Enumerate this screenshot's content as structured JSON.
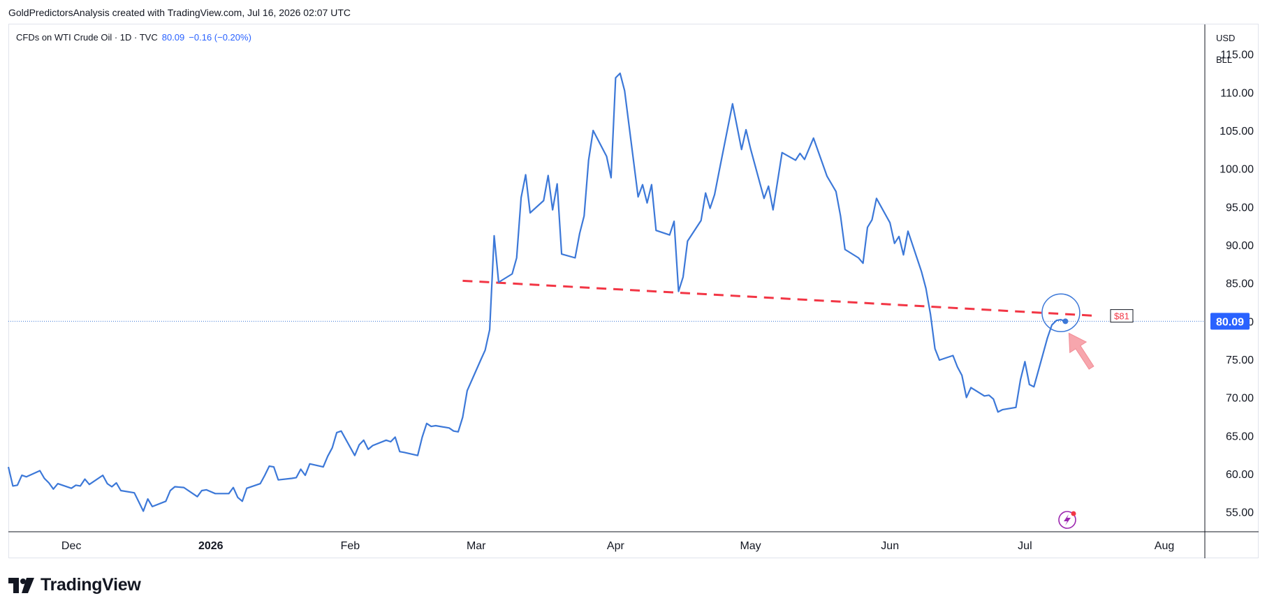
{
  "header": {
    "caption": "GoldPredictorsAnalysis created with TradingView.com, Jul 16, 2026 02:07 UTC"
  },
  "legend": {
    "symbol": "CFDs on WTI Crude Oil · 1D · TVC",
    "last": "80.09",
    "change": "−0.16 (−0.20%)"
  },
  "units": {
    "currency": "USD",
    "unit": "BLL"
  },
  "colors": {
    "line": "#3c78d8",
    "trendline": "#f23645",
    "price_badge": "#2962ff",
    "arrow": "#f7a6ad",
    "axis_text": "#131722"
  },
  "footer": {
    "brand": "TradingView"
  },
  "chart_data": {
    "type": "line",
    "title": "",
    "xlabel": "",
    "ylabel": "",
    "ylim": [
      52.5,
      119
    ],
    "yticks": [
      55,
      60,
      65,
      70,
      75,
      80,
      85,
      90,
      95,
      100,
      105,
      110,
      115
    ],
    "ytick_labels": [
      "55.00",
      "60.00",
      "65.00",
      "70.00",
      "75.00",
      "80.00",
      "85.00",
      "90.00",
      "95.00",
      "100.00",
      "105.00",
      "110.00",
      "115.00"
    ],
    "xlim": [
      "2025-11-17",
      "2026-08-10"
    ],
    "xticks": [
      {
        "label": "Dec",
        "date": "2025-12-01",
        "bold": false
      },
      {
        "label": "2026",
        "date": "2026-01-01",
        "bold": true
      },
      {
        "label": "Feb",
        "date": "2026-02-01",
        "bold": false
      },
      {
        "label": "Mar",
        "date": "2026-03-01",
        "bold": false
      },
      {
        "label": "Apr",
        "date": "2026-04-01",
        "bold": false
      },
      {
        "label": "May",
        "date": "2026-05-01",
        "bold": false
      },
      {
        "label": "Jun",
        "date": "2026-06-01",
        "bold": false
      },
      {
        "label": "Jul",
        "date": "2026-07-01",
        "bold": false
      },
      {
        "label": "Aug",
        "date": "2026-08-01",
        "bold": false
      }
    ],
    "series": [
      {
        "points": [
          [
            "2025-11-17",
            61.0
          ],
          [
            "2025-11-18",
            58.5
          ],
          [
            "2025-11-19",
            58.6
          ],
          [
            "2025-11-20",
            59.9
          ],
          [
            "2025-11-21",
            59.7
          ],
          [
            "2025-11-24",
            60.5
          ],
          [
            "2025-11-25",
            59.5
          ],
          [
            "2025-11-26",
            58.9
          ],
          [
            "2025-11-27",
            58.1
          ],
          [
            "2025-11-28",
            58.8
          ],
          [
            "2025-12-01",
            58.2
          ],
          [
            "2025-12-02",
            58.6
          ],
          [
            "2025-12-03",
            58.5
          ],
          [
            "2025-12-04",
            59.4
          ],
          [
            "2025-12-05",
            58.7
          ],
          [
            "2025-12-08",
            59.9
          ],
          [
            "2025-12-09",
            58.8
          ],
          [
            "2025-12-10",
            58.4
          ],
          [
            "2025-12-11",
            58.9
          ],
          [
            "2025-12-12",
            57.9
          ],
          [
            "2025-12-15",
            57.6
          ],
          [
            "2025-12-16",
            56.4
          ],
          [
            "2025-12-17",
            55.2
          ],
          [
            "2025-12-18",
            56.8
          ],
          [
            "2025-12-19",
            55.8
          ],
          [
            "2025-12-22",
            56.5
          ],
          [
            "2025-12-23",
            57.9
          ],
          [
            "2025-12-24",
            58.4
          ],
          [
            "2025-12-26",
            58.3
          ],
          [
            "2025-12-29",
            57.1
          ],
          [
            "2025-12-30",
            57.9
          ],
          [
            "2025-12-31",
            58.0
          ],
          [
            "2026-01-02",
            57.5
          ],
          [
            "2026-01-05",
            57.5
          ],
          [
            "2026-01-06",
            58.3
          ],
          [
            "2026-01-07",
            57.0
          ],
          [
            "2026-01-08",
            56.5
          ],
          [
            "2026-01-09",
            58.2
          ],
          [
            "2026-01-12",
            58.8
          ],
          [
            "2026-01-13",
            59.9
          ],
          [
            "2026-01-14",
            61.1
          ],
          [
            "2026-01-15",
            61.0
          ],
          [
            "2026-01-16",
            59.3
          ],
          [
            "2026-01-19",
            59.5
          ],
          [
            "2026-01-20",
            59.6
          ],
          [
            "2026-01-21",
            60.7
          ],
          [
            "2026-01-22",
            59.9
          ],
          [
            "2026-01-23",
            61.4
          ],
          [
            "2026-01-26",
            61.0
          ],
          [
            "2026-01-27",
            62.4
          ],
          [
            "2026-01-28",
            63.5
          ],
          [
            "2026-01-29",
            65.5
          ],
          [
            "2026-01-30",
            65.7
          ],
          [
            "2026-02-02",
            62.5
          ],
          [
            "2026-02-03",
            63.9
          ],
          [
            "2026-02-04",
            64.5
          ],
          [
            "2026-02-05",
            63.3
          ],
          [
            "2026-02-06",
            63.8
          ],
          [
            "2026-02-09",
            64.5
          ],
          [
            "2026-02-10",
            64.3
          ],
          [
            "2026-02-11",
            64.9
          ],
          [
            "2026-02-12",
            63.0
          ],
          [
            "2026-02-13",
            62.9
          ],
          [
            "2026-02-16",
            62.5
          ],
          [
            "2026-02-17",
            64.9
          ],
          [
            "2026-02-18",
            66.7
          ],
          [
            "2026-02-19",
            66.3
          ],
          [
            "2026-02-20",
            66.4
          ],
          [
            "2026-02-23",
            66.1
          ],
          [
            "2026-02-24",
            65.7
          ],
          [
            "2026-02-25",
            65.6
          ],
          [
            "2026-02-26",
            67.5
          ],
          [
            "2026-02-27",
            71.0
          ],
          [
            "2026-03-02",
            75.0
          ],
          [
            "2026-03-03",
            76.3
          ],
          [
            "2026-03-04",
            79.0
          ],
          [
            "2026-03-05",
            91.3
          ],
          [
            "2026-03-06",
            85.2
          ],
          [
            "2026-03-09",
            86.3
          ],
          [
            "2026-03-10",
            88.4
          ],
          [
            "2026-03-11",
            96.3
          ],
          [
            "2026-03-12",
            99.3
          ],
          [
            "2026-03-13",
            94.3
          ],
          [
            "2026-03-16",
            95.9
          ],
          [
            "2026-03-17",
            99.2
          ],
          [
            "2026-03-18",
            94.7
          ],
          [
            "2026-03-19",
            98.1
          ],
          [
            "2026-03-20",
            88.9
          ],
          [
            "2026-03-23",
            88.4
          ],
          [
            "2026-03-24",
            91.6
          ],
          [
            "2026-03-25",
            93.9
          ],
          [
            "2026-03-26",
            101.2
          ],
          [
            "2026-03-27",
            105.1
          ],
          [
            "2026-03-30",
            101.7
          ],
          [
            "2026-03-31",
            98.9
          ],
          [
            "2026-04-01",
            112.0
          ],
          [
            "2026-04-02",
            112.6
          ],
          [
            "2026-04-03",
            110.3
          ],
          [
            "2026-04-06",
            96.4
          ],
          [
            "2026-04-07",
            98.0
          ],
          [
            "2026-04-08",
            95.6
          ],
          [
            "2026-04-09",
            98.0
          ],
          [
            "2026-04-10",
            92.0
          ],
          [
            "2026-04-13",
            91.4
          ],
          [
            "2026-04-14",
            93.2
          ],
          [
            "2026-04-15",
            84.0
          ],
          [
            "2026-04-16",
            85.9
          ],
          [
            "2026-04-17",
            90.6
          ],
          [
            "2026-04-20",
            93.3
          ],
          [
            "2026-04-21",
            96.9
          ],
          [
            "2026-04-22",
            94.9
          ],
          [
            "2026-04-23",
            96.7
          ],
          [
            "2026-04-24",
            99.7
          ],
          [
            "2026-04-27",
            108.6
          ],
          [
            "2026-04-28",
            105.6
          ],
          [
            "2026-04-29",
            102.6
          ],
          [
            "2026-04-30",
            105.2
          ],
          [
            "2026-05-01",
            102.7
          ],
          [
            "2026-05-04",
            96.2
          ],
          [
            "2026-05-05",
            97.8
          ],
          [
            "2026-05-06",
            94.7
          ],
          [
            "2026-05-07",
            98.4
          ],
          [
            "2026-05-08",
            102.2
          ],
          [
            "2026-05-11",
            101.2
          ],
          [
            "2026-05-12",
            102.1
          ],
          [
            "2026-05-13",
            101.3
          ],
          [
            "2026-05-14",
            102.7
          ],
          [
            "2026-05-15",
            104.1
          ],
          [
            "2026-05-18",
            99.1
          ],
          [
            "2026-05-19",
            98.1
          ],
          [
            "2026-05-20",
            97.1
          ],
          [
            "2026-05-21",
            93.9
          ],
          [
            "2026-05-22",
            89.5
          ],
          [
            "2026-05-25",
            88.4
          ],
          [
            "2026-05-26",
            87.7
          ],
          [
            "2026-05-27",
            92.4
          ],
          [
            "2026-05-28",
            93.4
          ],
          [
            "2026-05-29",
            96.2
          ],
          [
            "2026-06-01",
            93.0
          ],
          [
            "2026-06-02",
            90.3
          ],
          [
            "2026-06-03",
            91.2
          ],
          [
            "2026-06-04",
            88.8
          ],
          [
            "2026-06-05",
            91.9
          ],
          [
            "2026-06-08",
            86.6
          ],
          [
            "2026-06-09",
            84.4
          ],
          [
            "2026-06-10",
            81.0
          ],
          [
            "2026-06-11",
            76.5
          ],
          [
            "2026-06-12",
            75.0
          ],
          [
            "2026-06-15",
            75.6
          ],
          [
            "2026-06-16",
            74.1
          ],
          [
            "2026-06-17",
            73.0
          ],
          [
            "2026-06-18",
            70.1
          ],
          [
            "2026-06-19",
            71.4
          ],
          [
            "2026-06-22",
            70.3
          ],
          [
            "2026-06-23",
            70.4
          ],
          [
            "2026-06-24",
            69.9
          ],
          [
            "2026-06-25",
            68.2
          ],
          [
            "2026-06-26",
            68.5
          ],
          [
            "2026-06-29",
            68.8
          ],
          [
            "2026-06-30",
            72.4
          ],
          [
            "2026-07-01",
            74.8
          ],
          [
            "2026-07-02",
            71.8
          ],
          [
            "2026-07-03",
            71.5
          ],
          [
            "2026-07-06",
            77.9
          ],
          [
            "2026-07-07",
            79.6
          ],
          [
            "2026-07-08",
            80.2
          ],
          [
            "2026-07-09",
            80.3
          ],
          [
            "2026-07-10",
            80.09
          ]
        ]
      }
    ],
    "last_price": {
      "value": 80.09,
      "label": "80.09"
    },
    "trendline": {
      "from": [
        "2026-02-26",
        85.4
      ],
      "to": [
        "2026-07-17",
        80.8
      ],
      "label": "$81"
    },
    "annotations": {
      "circle_center": [
        "2026-07-09",
        81.2
      ],
      "arrow_tip": [
        "2026-07-10",
        78.8
      ],
      "arrow_tail": [
        "2026-07-15",
        74.0
      ]
    }
  }
}
